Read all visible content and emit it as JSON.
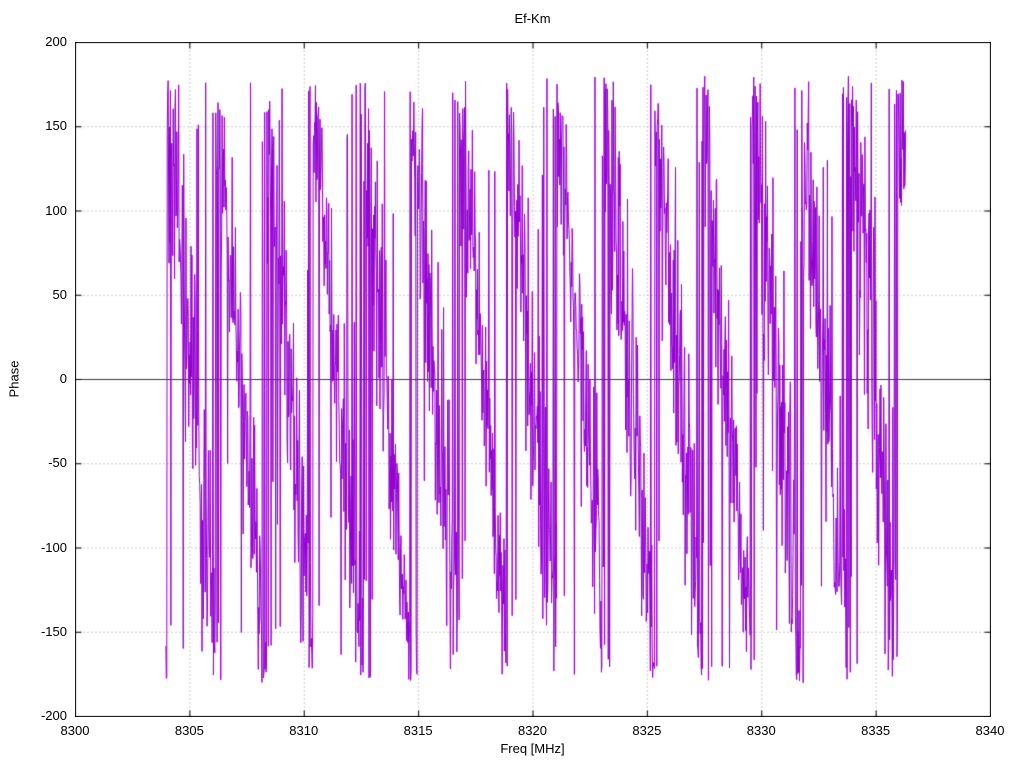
{
  "chart_data": {
    "type": "line",
    "title": "Ef-Km",
    "xlabel": "Freq [MHz]",
    "ylabel": "Phase",
    "xlim": [
      8300,
      8340
    ],
    "ylim": [
      -200,
      200
    ],
    "x_ticks": [
      8300,
      8305,
      8310,
      8315,
      8320,
      8325,
      8330,
      8335,
      8340
    ],
    "y_ticks": [
      -200,
      -150,
      -100,
      -50,
      0,
      50,
      100,
      150,
      200
    ],
    "grid": true,
    "grid_style": "dotted",
    "grid_color": "#9c9c9c",
    "border_color": "#000000",
    "zero_axis": true,
    "zero_axis_color": "#3a3a3a",
    "legend_position": "none",
    "series": [
      {
        "name": "Ef-Km phase",
        "color": "#9400D3",
        "x_start": 8303.95,
        "x_end": 8336.3,
        "wrap_range_deg": [
          -180,
          180
        ],
        "description": "Wrapped phase vs frequency: dense, noisy sawtooth wrapping between -180 and +180 degrees, roughly 15 wrap cycles between 8304 and 8336 MHz; no data outside that band.",
        "representative_points": [
          [
            8304.1,
            168
          ],
          [
            8304.5,
            -175
          ],
          [
            8305.0,
            55
          ],
          [
            8305.4,
            -160
          ],
          [
            8306.2,
            172
          ],
          [
            8306.6,
            -120
          ],
          [
            8307.1,
            117
          ],
          [
            8307.6,
            -150
          ],
          [
            8308.3,
            180
          ],
          [
            8308.8,
            -160
          ],
          [
            8309.4,
            111
          ],
          [
            8310.2,
            178
          ],
          [
            8311.0,
            95
          ],
          [
            8311.6,
            -165
          ],
          [
            8312.3,
            122
          ],
          [
            8312.9,
            -175
          ],
          [
            8313.6,
            170
          ],
          [
            8314.3,
            -140
          ],
          [
            8315.2,
            175
          ],
          [
            8315.9,
            -170
          ],
          [
            8316.6,
            155
          ],
          [
            8317.2,
            -178
          ],
          [
            8318.4,
            168
          ],
          [
            8319.1,
            -155
          ],
          [
            8319.9,
            152
          ],
          [
            8320.6,
            -120
          ],
          [
            8321.4,
            160
          ],
          [
            8322.1,
            -165
          ],
          [
            8322.9,
            145
          ],
          [
            8323.6,
            180
          ],
          [
            8324.3,
            -150
          ],
          [
            8325.0,
            46
          ],
          [
            8325.7,
            -145
          ],
          [
            8326.4,
            170
          ],
          [
            8327.1,
            -180
          ],
          [
            8327.9,
            172
          ],
          [
            8328.6,
            -130
          ],
          [
            8329.4,
            95
          ],
          [
            8330.1,
            180
          ],
          [
            8330.9,
            -160
          ],
          [
            8331.6,
            162
          ],
          [
            8332.4,
            -178
          ],
          [
            8333.1,
            140
          ],
          [
            8333.9,
            -155
          ],
          [
            8334.7,
            180
          ],
          [
            8335.3,
            -150
          ],
          [
            8335.95,
            180
          ]
        ],
        "synthesis": {
          "sample_step_mhz": 0.02,
          "wrap_period_mhz": 2.13,
          "ramp_top_deg": 170,
          "ramp_span_deg": 340,
          "noise_base_deg": 46,
          "noise_mod_deg": 60,
          "burst_probability": 0.06,
          "seed": 42
        }
      }
    ]
  }
}
